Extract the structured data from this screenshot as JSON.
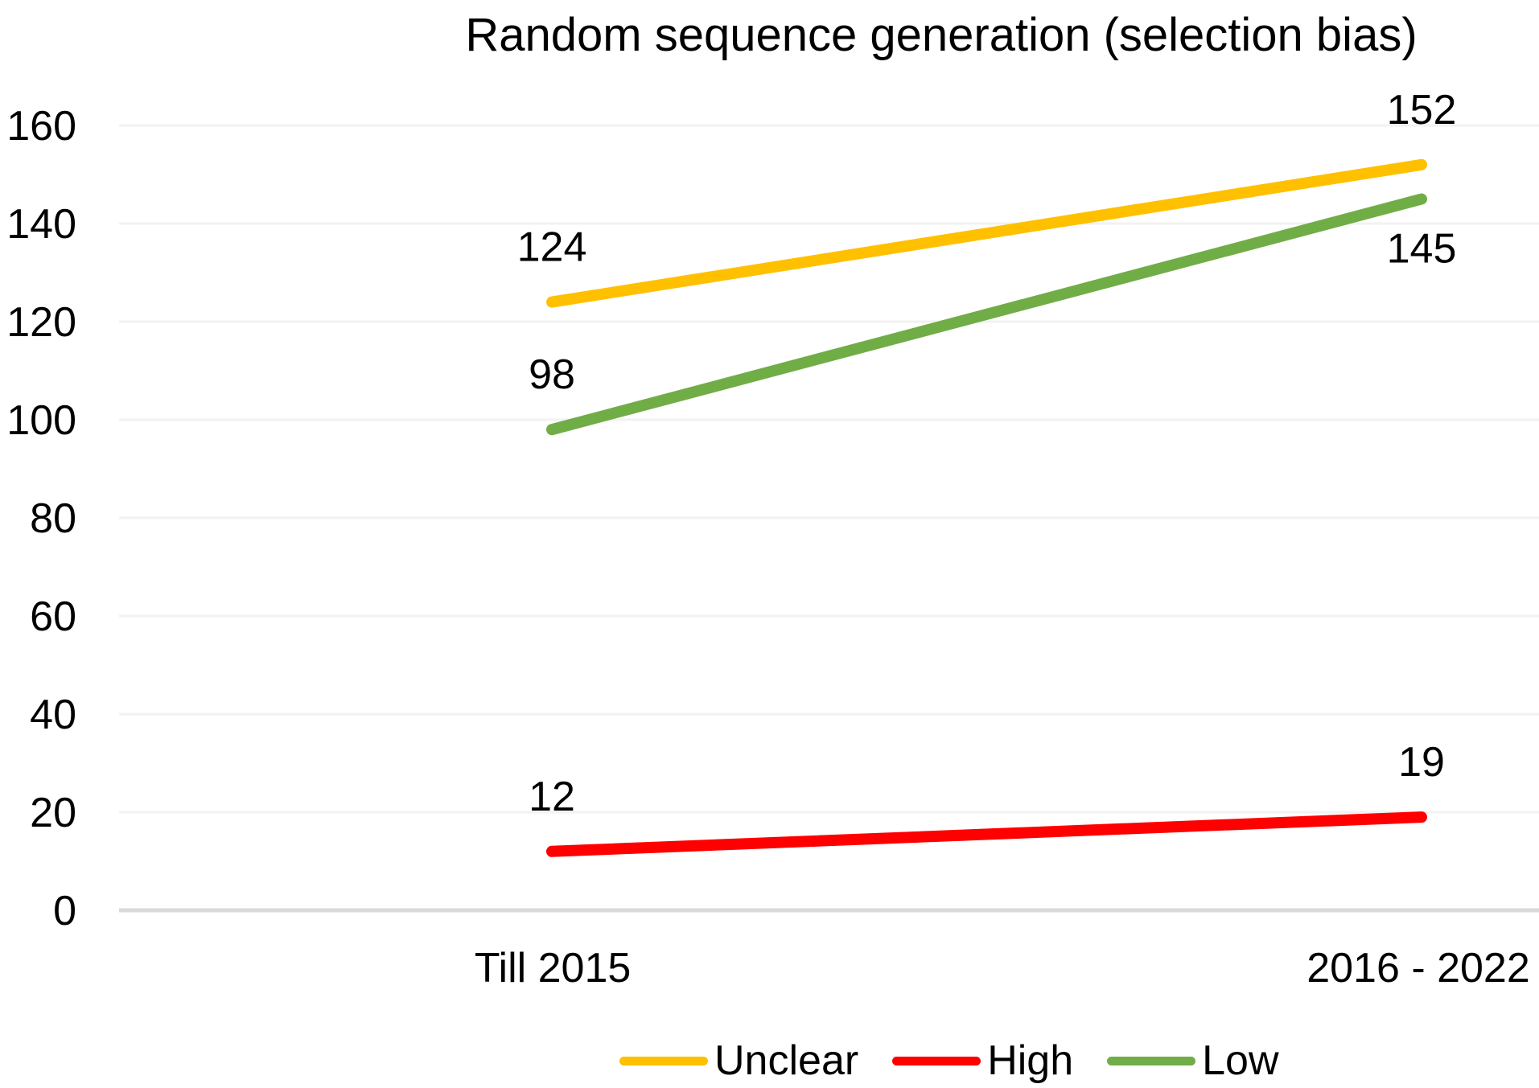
{
  "chart_data": {
    "type": "line",
    "title": "Random sequence generation (selection bias)",
    "categories": [
      "Till 2015",
      "2016 - 2022"
    ],
    "series": [
      {
        "name": "Unclear",
        "color": "#FFC000",
        "values": [
          124,
          152
        ]
      },
      {
        "name": "High",
        "color": "#FF0000",
        "values": [
          12,
          19
        ]
      },
      {
        "name": "Low",
        "color": "#70AD47",
        "values": [
          98,
          145
        ]
      }
    ],
    "ylim": [
      0,
      160
    ],
    "yticks": [
      0,
      20,
      40,
      60,
      80,
      100,
      120,
      140,
      160
    ],
    "xlabel": "",
    "ylabel": "",
    "grid": true,
    "legend_position": "bottom",
    "data_labels": true
  },
  "colors": {
    "grid": "#F2F2F2",
    "axis_line": "#D9D9D9",
    "text": "#000000",
    "background": "#FFFFFF"
  }
}
